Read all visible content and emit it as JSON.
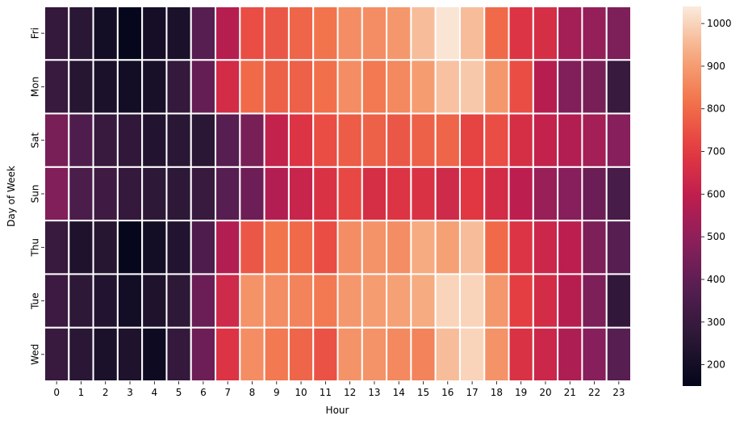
{
  "chart_data": {
    "type": "heatmap",
    "title": "",
    "xlabel": "Hour",
    "ylabel": "Day of Week",
    "x": [
      "0",
      "1",
      "2",
      "3",
      "4",
      "5",
      "6",
      "7",
      "8",
      "9",
      "10",
      "11",
      "12",
      "13",
      "14",
      "15",
      "16",
      "17",
      "18",
      "19",
      "20",
      "21",
      "22",
      "23"
    ],
    "y": [
      "Fri",
      "Mon",
      "Sat",
      "Sun",
      "Thu",
      "Tue",
      "Wed"
    ],
    "values": [
      [
        290,
        260,
        200,
        160,
        205,
        220,
        380,
        580,
        740,
        760,
        790,
        820,
        870,
        870,
        890,
        960,
        1030,
        960,
        800,
        680,
        660,
        540,
        510,
        460
      ],
      [
        300,
        250,
        220,
        200,
        210,
        290,
        410,
        650,
        800,
        780,
        780,
        810,
        870,
        830,
        860,
        900,
        970,
        980,
        890,
        740,
        580,
        470,
        450,
        300
      ],
      [
        450,
        360,
        300,
        280,
        240,
        260,
        260,
        380,
        450,
        610,
        680,
        740,
        770,
        780,
        760,
        780,
        790,
        720,
        740,
        660,
        610,
        570,
        540,
        480
      ],
      [
        470,
        350,
        320,
        290,
        270,
        270,
        300,
        380,
        430,
        570,
        620,
        670,
        730,
        660,
        680,
        670,
        640,
        690,
        650,
        590,
        520,
        480,
        420,
        340
      ],
      [
        300,
        230,
        250,
        160,
        200,
        240,
        360,
        570,
        760,
        820,
        800,
        740,
        870,
        880,
        870,
        930,
        910,
        960,
        800,
        680,
        630,
        590,
        460,
        380
      ],
      [
        310,
        270,
        240,
        200,
        230,
        270,
        420,
        640,
        880,
        870,
        850,
        830,
        890,
        900,
        910,
        930,
        1000,
        1000,
        890,
        710,
        650,
        580,
        460,
        280
      ],
      [
        300,
        260,
        220,
        230,
        180,
        290,
        430,
        680,
        870,
        830,
        790,
        750,
        880,
        880,
        860,
        850,
        960,
        1000,
        880,
        670,
        630,
        560,
        480,
        380
      ]
    ],
    "colorbar": {
      "min": 150,
      "max": 1040,
      "ticks": [
        200,
        300,
        400,
        500,
        600,
        700,
        800,
        900,
        1000
      ]
    },
    "colormap": "rocket",
    "grid": false
  }
}
